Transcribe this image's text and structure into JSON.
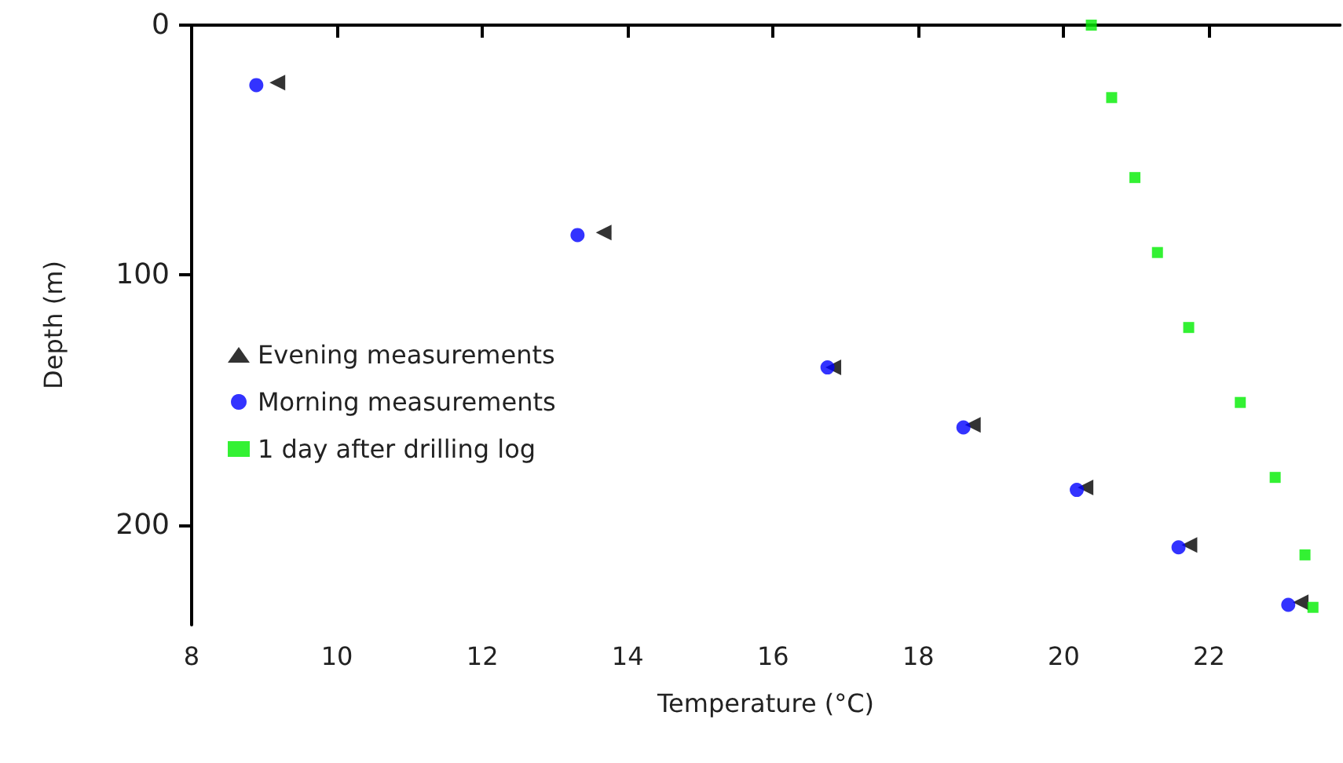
{
  "chart_data": {
    "type": "scatter",
    "xlabel": "Temperature (°C)",
    "ylabel": "Depth (m)",
    "xlim": [
      8,
      23.8
    ],
    "xticks": [
      8,
      10,
      12,
      14,
      16,
      18,
      20,
      22
    ],
    "ylim": [
      240,
      0
    ],
    "yticks": [
      0,
      100,
      200
    ],
    "grid": false,
    "legend": "left",
    "series": [
      {
        "name": "Evening measurements",
        "color": "#000000",
        "marker": "triangle",
        "x": [
          9.18,
          13.67,
          16.83,
          18.75,
          20.3,
          21.73,
          23.26
        ],
        "values": [
          23,
          83,
          137,
          160,
          185,
          208,
          231
        ]
      },
      {
        "name": "Morning measurements",
        "color": "#0000ff",
        "marker": "circle",
        "x": [
          8.89,
          13.31,
          16.75,
          18.62,
          20.18,
          21.58,
          23.09
        ],
        "values": [
          24,
          84,
          137,
          161,
          186,
          209,
          232
        ]
      },
      {
        "name": "1 day after drilling log",
        "color": "#00ee00",
        "marker": "square",
        "x": [
          20.38,
          20.66,
          20.98,
          21.29,
          21.72,
          22.43,
          22.91,
          23.32,
          23.43
        ],
        "values": [
          0,
          29,
          61,
          91,
          121,
          151,
          181,
          212,
          233
        ]
      }
    ]
  }
}
